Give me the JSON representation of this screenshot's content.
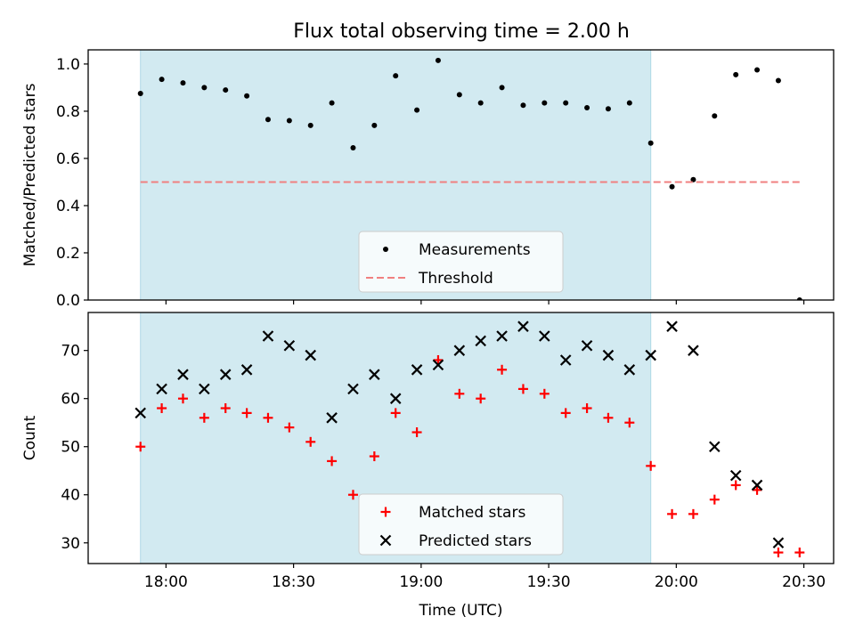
{
  "title": "Flux total observing time = 2.00 h",
  "colors": {
    "shade": "#add8e6",
    "measurement": "#000000",
    "threshold": "#f08080",
    "matched": "#ff0000",
    "predicted": "#000000"
  },
  "chart_data": [
    {
      "type": "scatter",
      "panel": "top",
      "ylabel": "Matched/Predicted stars",
      "ylim": [
        0.0,
        1.06
      ],
      "yticks": [
        0.0,
        0.2,
        0.4,
        0.6,
        0.8,
        1.0
      ],
      "ytick_labels": [
        "0.0",
        "0.2",
        "0.4",
        "0.6",
        "0.8",
        "1.0"
      ],
      "shaded_region": [
        "17:54",
        "19:54"
      ],
      "legend_position": "bottom-center",
      "series": [
        {
          "name": "Measurements",
          "marker": "dot",
          "x": [
            "17:54",
            "17:59",
            "18:04",
            "18:09",
            "18:14",
            "18:19",
            "18:24",
            "18:29",
            "18:34",
            "18:39",
            "18:44",
            "18:49",
            "18:54",
            "18:59",
            "19:04",
            "19:09",
            "19:14",
            "19:19",
            "19:24",
            "19:29",
            "19:34",
            "19:39",
            "19:44",
            "19:49",
            "19:54",
            "19:59",
            "20:04",
            "20:09",
            "20:14",
            "20:19",
            "20:24",
            "20:29"
          ],
          "y": [
            0.875,
            0.935,
            0.92,
            0.9,
            0.89,
            0.865,
            0.765,
            0.76,
            0.74,
            0.835,
            0.645,
            0.74,
            0.95,
            0.805,
            1.015,
            0.87,
            0.835,
            0.9,
            0.825,
            0.835,
            0.835,
            0.815,
            0.81,
            0.835,
            0.665,
            0.48,
            0.51,
            0.78,
            0.955,
            0.975,
            0.93,
            0.0
          ]
        },
        {
          "name": "Threshold",
          "style": "dashed",
          "x": [
            "17:54",
            "20:29"
          ],
          "y": [
            0.5,
            0.5
          ]
        }
      ]
    },
    {
      "type": "scatter",
      "panel": "bottom",
      "xlabel": "Time (UTC)",
      "ylabel": "Count",
      "ylim": [
        25.7,
        77.9
      ],
      "yticks": [
        30,
        40,
        50,
        60,
        70
      ],
      "ytick_labels": [
        "30",
        "40",
        "50",
        "60",
        "70"
      ],
      "xlim": [
        "17:41.7",
        "20:37"
      ],
      "xticks": [
        "18:00",
        "18:30",
        "19:00",
        "19:30",
        "20:00",
        "20:30"
      ],
      "shaded_region": [
        "17:54",
        "19:54"
      ],
      "legend_position": "bottom-center",
      "series": [
        {
          "name": "Matched stars",
          "marker": "plus",
          "x": [
            "17:54",
            "17:59",
            "18:04",
            "18:09",
            "18:14",
            "18:19",
            "18:24",
            "18:29",
            "18:34",
            "18:39",
            "18:44",
            "18:49",
            "18:54",
            "18:59",
            "19:04",
            "19:09",
            "19:14",
            "19:19",
            "19:24",
            "19:29",
            "19:34",
            "19:39",
            "19:44",
            "19:49",
            "19:54",
            "19:59",
            "20:04",
            "20:09",
            "20:14",
            "20:19",
            "20:24",
            "20:29"
          ],
          "y": [
            50,
            58,
            60,
            56,
            58,
            57,
            56,
            54,
            51,
            47,
            40,
            48,
            57,
            53,
            68,
            61,
            60,
            66,
            62,
            61,
            57,
            58,
            56,
            55,
            46,
            36,
            36,
            39,
            42,
            41,
            28,
            28
          ]
        },
        {
          "name": "Predicted stars",
          "marker": "x",
          "x": [
            "17:54",
            "17:59",
            "18:04",
            "18:09",
            "18:14",
            "18:19",
            "18:24",
            "18:29",
            "18:34",
            "18:39",
            "18:44",
            "18:49",
            "18:54",
            "18:59",
            "19:04",
            "19:09",
            "19:14",
            "19:19",
            "19:24",
            "19:29",
            "19:34",
            "19:39",
            "19:44",
            "19:49",
            "19:54",
            "19:59",
            "20:04",
            "20:09",
            "20:14",
            "20:19",
            "20:24"
          ],
          "y": [
            57,
            62,
            65,
            62,
            65,
            66,
            73,
            71,
            69,
            56,
            62,
            65,
            60,
            66,
            67,
            70,
            72,
            73,
            75,
            73,
            68,
            71,
            69,
            66,
            69,
            75,
            70,
            50,
            44,
            42,
            30
          ]
        }
      ]
    }
  ]
}
